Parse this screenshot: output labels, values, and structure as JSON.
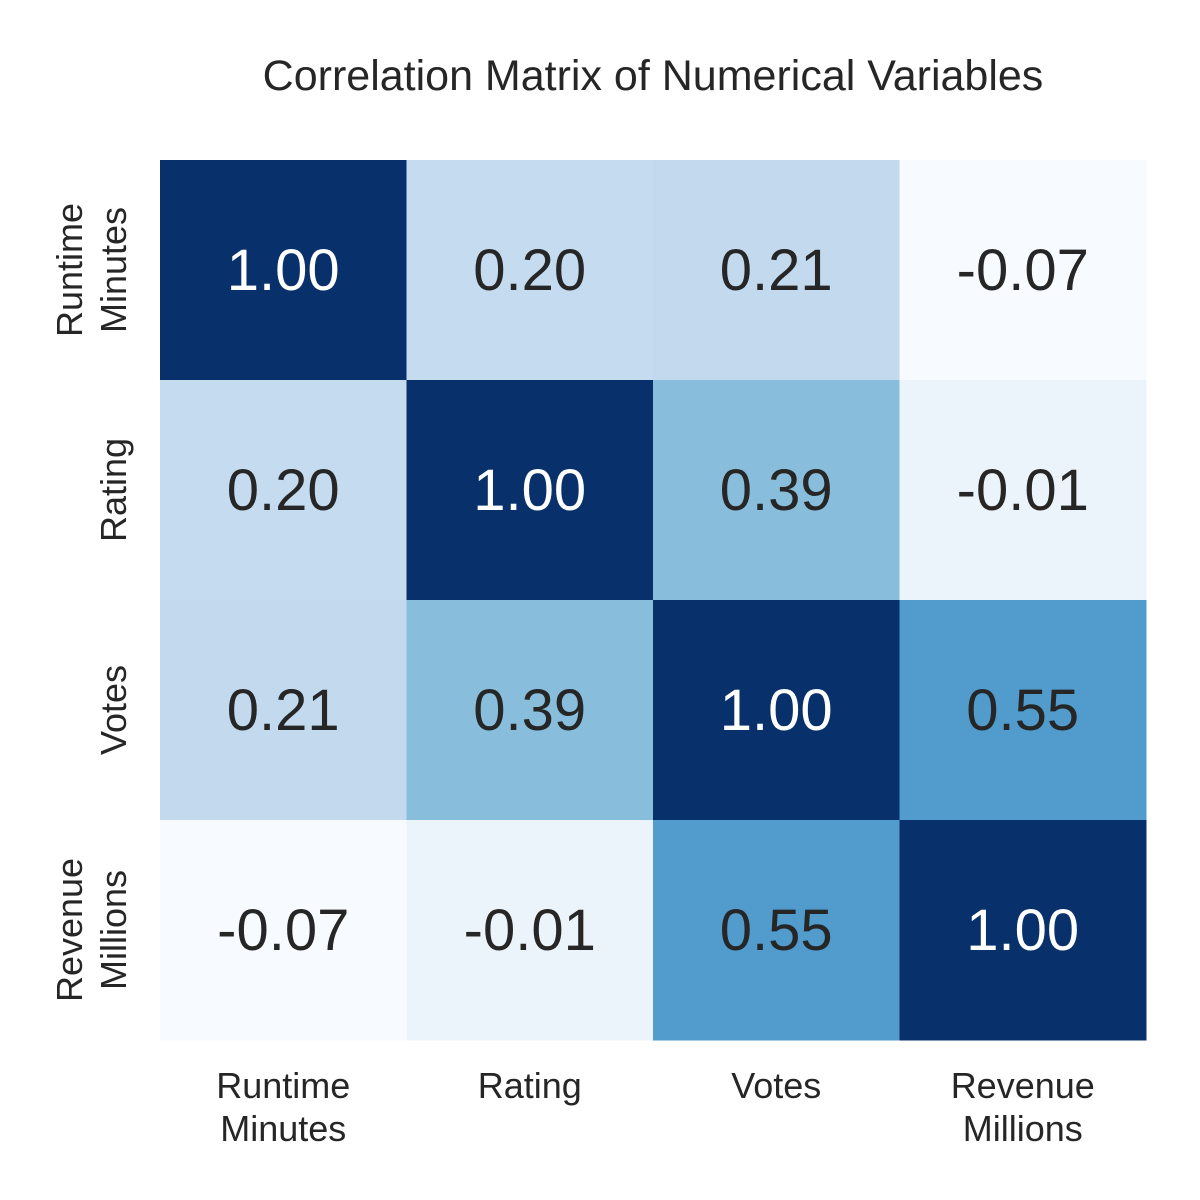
{
  "chart_data": {
    "type": "heatmap",
    "title": "Correlation Matrix of Numerical Variables",
    "xlabel": "",
    "ylabel": "",
    "x_labels": [
      [
        "Runtime",
        "Minutes"
      ],
      [
        "Rating"
      ],
      [
        "Votes"
      ],
      [
        "Revenue",
        "Millions"
      ]
    ],
    "y_labels": [
      [
        "Runtime",
        "Minutes"
      ],
      [
        "Rating"
      ],
      [
        "Votes"
      ],
      [
        "Revenue",
        "Millions"
      ]
    ],
    "values": [
      [
        1.0,
        0.2,
        0.21,
        -0.07
      ],
      [
        0.2,
        1.0,
        0.39,
        -0.01
      ],
      [
        0.21,
        0.39,
        1.0,
        0.55
      ],
      [
        -0.07,
        -0.01,
        0.55,
        1.0
      ]
    ],
    "annotations": [
      [
        "1.00",
        "0.20",
        "0.21",
        "-0.07"
      ],
      [
        "0.20",
        "1.00",
        "0.39",
        "-0.01"
      ],
      [
        "0.21",
        "0.39",
        "1.00",
        "0.55"
      ],
      [
        "-0.07",
        "-0.01",
        "0.55",
        "1.00"
      ]
    ],
    "colormap": "Blues",
    "color_range": [
      -0.07,
      1.0
    ],
    "colorbar": false,
    "grid": false,
    "colors": {
      "low": "#f7fbff",
      "high": "#08306b",
      "dark_text": "#262626",
      "light_text": "#ffffff"
    }
  }
}
